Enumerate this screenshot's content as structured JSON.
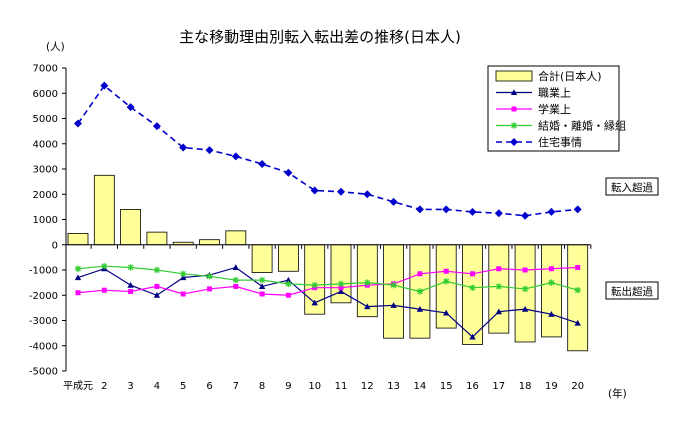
{
  "chart_data": {
    "type": "bar",
    "title": "主な移動理由別転入転出差の推移(日本人)",
    "ylabel": "(人)",
    "xlabel": "(年)",
    "ylim": [
      -5000,
      7000
    ],
    "yticks": [
      7000,
      6000,
      5000,
      4000,
      3000,
      2000,
      1000,
      0,
      -1000,
      -2000,
      -3000,
      -4000,
      -5000
    ],
    "categories": [
      "平成元",
      "2",
      "3",
      "4",
      "5",
      "6",
      "7",
      "8",
      "9",
      "10",
      "11",
      "12",
      "13",
      "14",
      "15",
      "16",
      "17",
      "18",
      "19",
      "20"
    ],
    "annotations": {
      "positive": "転入超過",
      "negative": "転出超過"
    },
    "legend_position": "top-right",
    "series": [
      {
        "name": "合計(日本人)",
        "kind": "bar",
        "color": "#ffff99",
        "values": [
          450,
          2750,
          1400,
          500,
          100,
          200,
          550,
          -1100,
          -1050,
          -2750,
          -2300,
          -2850,
          -3700,
          -3700,
          -3300,
          -3950,
          -3500,
          -3850,
          -3650,
          -4200
        ]
      },
      {
        "name": "職業上",
        "kind": "line",
        "color": "#000080",
        "marker": "triangle",
        "values": [
          -1300,
          -950,
          -1600,
          -2000,
          -1300,
          -1200,
          -900,
          -1650,
          -1400,
          -2300,
          -1850,
          -2450,
          -2400,
          -2550,
          -2700,
          -3650,
          -2650,
          -2550,
          -2750,
          -3100
        ]
      },
      {
        "name": "学業上",
        "kind": "line",
        "color": "#ff00ff",
        "marker": "square",
        "values": [
          -1900,
          -1800,
          -1850,
          -1650,
          -1950,
          -1750,
          -1650,
          -1950,
          -2000,
          -1700,
          -1700,
          -1600,
          -1550,
          -1150,
          -1050,
          -1150,
          -950,
          -1000,
          -950,
          -900
        ]
      },
      {
        "name": "結婚・離婚・縁組",
        "kind": "line",
        "color": "#33cc33",
        "marker": "star",
        "values": [
          -950,
          -850,
          -900,
          -1000,
          -1150,
          -1250,
          -1400,
          -1400,
          -1550,
          -1600,
          -1550,
          -1500,
          -1600,
          -1850,
          -1450,
          -1700,
          -1650,
          -1750,
          -1500,
          -1800
        ]
      },
      {
        "name": "住宅事情",
        "kind": "line",
        "color": "#0000cc",
        "marker": "diamond",
        "dashed": true,
        "values": [
          4800,
          6300,
          5450,
          4700,
          3850,
          3750,
          3500,
          3200,
          2850,
          2150,
          2100,
          2000,
          1700,
          1400,
          1400,
          1300,
          1250,
          1150,
          1300,
          1400
        ]
      }
    ]
  }
}
